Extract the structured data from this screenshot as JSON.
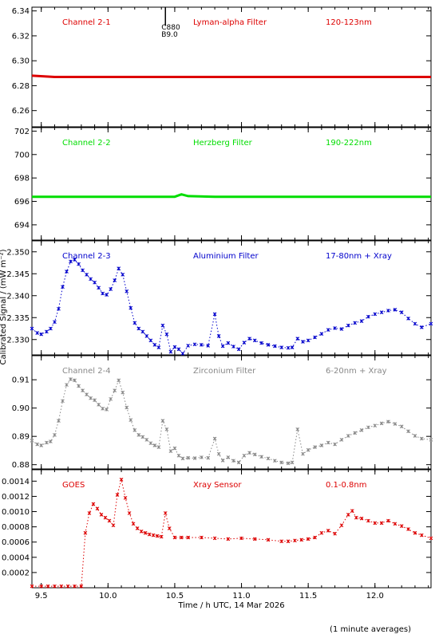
{
  "figure": {
    "ylabel": "Calibrated Signal / (mW m⁻²)",
    "xlabel": "Time / h UTC, 14 Mar 2026",
    "footnote": "(1 minute averages)"
  },
  "chart_data": [
    {
      "type": "scatter",
      "labels": [
        "Channel 2-1",
        "Lyman-alpha Filter",
        "120-123nm"
      ],
      "color": "#dd0000",
      "marker": "line",
      "xlim": [
        9.43,
        12.42
      ],
      "ylim": [
        6.247,
        6.343
      ],
      "yticks": [
        "6.26",
        "6.28",
        "6.30",
        "6.32",
        "6.34"
      ],
      "annotation": {
        "x": 10.43,
        "y_top": 6.343,
        "y_bottom": 6.328,
        "lines": [
          "C880",
          "B9.0"
        ]
      },
      "series": [
        {
          "x": [
            9.43,
            9.6,
            9.8,
            10.0,
            10.2,
            10.4,
            10.6,
            10.8,
            11.0,
            11.2,
            11.4,
            11.6,
            11.8,
            12.0,
            12.2,
            12.42
          ],
          "y": [
            6.288,
            6.287,
            6.287,
            6.287,
            6.287,
            6.287,
            6.287,
            6.287,
            6.287,
            6.287,
            6.287,
            6.287,
            6.287,
            6.287,
            6.287,
            6.287
          ]
        }
      ]
    },
    {
      "type": "scatter",
      "labels": [
        "Channel 2-2",
        "Herzberg Filter",
        "190-222nm"
      ],
      "color": "#00dd00",
      "marker": "line",
      "xlim": [
        9.43,
        12.42
      ],
      "ylim": [
        692.7,
        702.3
      ],
      "yticks": [
        "694",
        "696",
        "698",
        "700",
        "702"
      ],
      "series": [
        {
          "x": [
            9.43,
            9.6,
            9.8,
            10.0,
            10.2,
            10.4,
            10.5,
            10.55,
            10.6,
            10.8,
            11.0,
            11.2,
            11.4,
            11.6,
            11.8,
            12.0,
            12.2,
            12.42
          ],
          "y": [
            696.4,
            696.4,
            696.4,
            696.4,
            696.4,
            696.4,
            696.4,
            696.6,
            696.45,
            696.4,
            696.4,
            696.4,
            696.4,
            696.4,
            696.4,
            696.4,
            696.4,
            696.4
          ]
        }
      ]
    },
    {
      "type": "scatter",
      "labels": [
        "Channel 2-3",
        "Aluminium Filter",
        "17-80nm + Xray"
      ],
      "color": "#0000cc",
      "marker": "x",
      "xlim": [
        9.43,
        12.42
      ],
      "ylim": [
        2.3265,
        2.3525
      ],
      "yticks": [
        "2.330",
        "2.335",
        "2.340",
        "2.345",
        "2.350"
      ],
      "series": [
        {
          "x": [
            9.43,
            9.47,
            9.5,
            9.54,
            9.57,
            9.6,
            9.63,
            9.66,
            9.69,
            9.72,
            9.75,
            9.78,
            9.81,
            9.84,
            9.87,
            9.9,
            9.93,
            9.96,
            9.99,
            10.02,
            10.05,
            10.08,
            10.11,
            10.14,
            10.17,
            10.2,
            10.23,
            10.26,
            10.29,
            10.32,
            10.35,
            10.38,
            10.41,
            10.44,
            10.47,
            10.5,
            10.53,
            10.56,
            10.6,
            10.65,
            10.7,
            10.75,
            10.8,
            10.83,
            10.86,
            10.9,
            10.94,
            10.98,
            11.02,
            11.06,
            11.1,
            11.15,
            11.2,
            11.25,
            11.3,
            11.35,
            11.38,
            11.42,
            11.46,
            11.5,
            11.55,
            11.6,
            11.65,
            11.7,
            11.75,
            11.8,
            11.85,
            11.9,
            11.95,
            12.0,
            12.05,
            12.1,
            12.15,
            12.2,
            12.25,
            12.3,
            12.35,
            12.42
          ],
          "y": [
            2.3325,
            2.3315,
            2.3312,
            2.3318,
            2.3325,
            2.334,
            2.337,
            2.342,
            2.3455,
            2.3478,
            2.3482,
            2.3472,
            2.3458,
            2.3448,
            2.3438,
            2.343,
            2.3418,
            2.3405,
            2.3402,
            2.3415,
            2.3435,
            2.3462,
            2.3448,
            2.341,
            2.3372,
            2.3338,
            2.3325,
            2.3318,
            2.3308,
            2.3298,
            2.3288,
            2.3282,
            2.3332,
            2.3312,
            2.3272,
            2.3283,
            2.3278,
            2.3268,
            2.3286,
            2.3289,
            2.3288,
            2.3286,
            2.3358,
            2.3308,
            2.3285,
            2.3292,
            2.3284,
            2.3278,
            2.3293,
            2.3302,
            2.3298,
            2.3292,
            2.3288,
            2.3285,
            2.3282,
            2.3281,
            2.3282,
            2.3302,
            2.3295,
            2.3298,
            2.3305,
            2.3313,
            2.3322,
            2.3326,
            2.3324,
            2.3332,
            2.3338,
            2.3342,
            2.3352,
            2.3358,
            2.3362,
            2.3366,
            2.3368,
            2.3362,
            2.3348,
            2.3336,
            2.3328,
            2.3336
          ]
        }
      ]
    },
    {
      "type": "scatter",
      "labels": [
        "Channel 2-4",
        "Zirconium Filter",
        "6-20nm + Xray"
      ],
      "color": "#888888",
      "marker": "x",
      "xlim": [
        9.43,
        12.42
      ],
      "ylim": [
        0.8785,
        0.9185
      ],
      "yticks": [
        "0.88",
        "0.89",
        "0.90",
        "0.91"
      ],
      "series": [
        {
          "x": [
            9.43,
            9.47,
            9.5,
            9.54,
            9.57,
            9.6,
            9.63,
            9.66,
            9.69,
            9.72,
            9.75,
            9.78,
            9.81,
            9.84,
            9.87,
            9.9,
            9.93,
            9.96,
            9.99,
            10.02,
            10.05,
            10.08,
            10.11,
            10.14,
            10.17,
            10.2,
            10.23,
            10.26,
            10.29,
            10.32,
            10.35,
            10.38,
            10.41,
            10.44,
            10.47,
            10.5,
            10.53,
            10.56,
            10.6,
            10.65,
            10.7,
            10.75,
            10.8,
            10.83,
            10.86,
            10.9,
            10.94,
            10.98,
            11.02,
            11.06,
            11.1,
            11.15,
            11.2,
            11.25,
            11.3,
            11.35,
            11.38,
            11.42,
            11.46,
            11.5,
            11.55,
            11.6,
            11.65,
            11.7,
            11.75,
            11.8,
            11.85,
            11.9,
            11.95,
            12.0,
            12.05,
            12.1,
            12.15,
            12.2,
            12.25,
            12.3,
            12.35,
            12.42
          ],
          "y": [
            0.8885,
            0.8872,
            0.8868,
            0.8878,
            0.8882,
            0.8905,
            0.8955,
            0.9025,
            0.9082,
            0.9102,
            0.9098,
            0.9078,
            0.9062,
            0.9048,
            0.9035,
            0.9028,
            0.9012,
            0.8998,
            0.8995,
            0.9032,
            0.9062,
            0.9098,
            0.9055,
            0.9002,
            0.8958,
            0.8922,
            0.8905,
            0.8898,
            0.8888,
            0.8876,
            0.8868,
            0.8862,
            0.8955,
            0.8925,
            0.8848,
            0.8858,
            0.8832,
            0.8822,
            0.8824,
            0.8823,
            0.8826,
            0.8824,
            0.8892,
            0.8838,
            0.8815,
            0.8826,
            0.8814,
            0.8808,
            0.8832,
            0.8842,
            0.8836,
            0.8828,
            0.8822,
            0.8814,
            0.8808,
            0.8805,
            0.8808,
            0.8925,
            0.8838,
            0.8852,
            0.8862,
            0.8868,
            0.8878,
            0.8872,
            0.8888,
            0.8902,
            0.8912,
            0.8922,
            0.8932,
            0.8938,
            0.8946,
            0.8952,
            0.8944,
            0.8935,
            0.8918,
            0.8902,
            0.8892,
            0.8888
          ]
        }
      ]
    },
    {
      "type": "scatter",
      "labels": [
        "GOES",
        "Xray Sensor",
        "0.1-0.8nm"
      ],
      "color": "#dd0000",
      "marker": "x",
      "xlim": [
        9.43,
        12.42
      ],
      "ylim": [
        0,
        0.00155
      ],
      "yticks": [
        "0.0002",
        "0.0004",
        "0.0006",
        "0.0008",
        "0.0010",
        "0.0012",
        "0.0014"
      ],
      "xticks": [
        "9.5",
        "10.0",
        "10.5",
        "11.0",
        "11.5",
        "12.0"
      ],
      "series": [
        {
          "x": [
            9.43,
            9.5,
            9.55,
            9.6,
            9.65,
            9.7,
            9.75,
            9.8,
            9.83,
            9.86,
            9.89,
            9.92,
            9.95,
            9.98,
            10.01,
            10.04,
            10.07,
            10.1,
            10.13,
            10.16,
            10.19,
            10.22,
            10.25,
            10.28,
            10.31,
            10.34,
            10.37,
            10.4,
            10.43,
            10.46,
            10.5,
            10.55,
            10.6,
            10.7,
            10.8,
            10.9,
            11.0,
            11.1,
            11.2,
            11.3,
            11.35,
            11.4,
            11.45,
            11.5,
            11.55,
            11.6,
            11.65,
            11.7,
            11.75,
            11.8,
            11.83,
            11.86,
            11.9,
            11.95,
            12.0,
            12.05,
            12.1,
            12.15,
            12.2,
            12.25,
            12.3,
            12.35,
            12.42
          ],
          "y": [
            2e-05,
            2e-05,
            2e-05,
            2e-05,
            2e-05,
            2e-05,
            2e-05,
            2e-05,
            0.00072,
            0.00098,
            0.0011,
            0.00104,
            0.00096,
            0.00092,
            0.00088,
            0.00082,
            0.00122,
            0.00142,
            0.00118,
            0.00098,
            0.00084,
            0.00078,
            0.00074,
            0.00072,
            0.0007,
            0.00069,
            0.00068,
            0.00067,
            0.00098,
            0.00078,
            0.00066,
            0.00066,
            0.00066,
            0.00066,
            0.00065,
            0.00064,
            0.00065,
            0.00064,
            0.00063,
            0.00061,
            0.00061,
            0.00062,
            0.00063,
            0.00064,
            0.00066,
            0.00072,
            0.00075,
            0.00071,
            0.00082,
            0.00096,
            0.00101,
            0.00092,
            0.00091,
            0.00088,
            0.00085,
            0.00085,
            0.00088,
            0.00084,
            0.00081,
            0.00077,
            0.00072,
            0.00069,
            0.00065
          ]
        }
      ]
    }
  ]
}
